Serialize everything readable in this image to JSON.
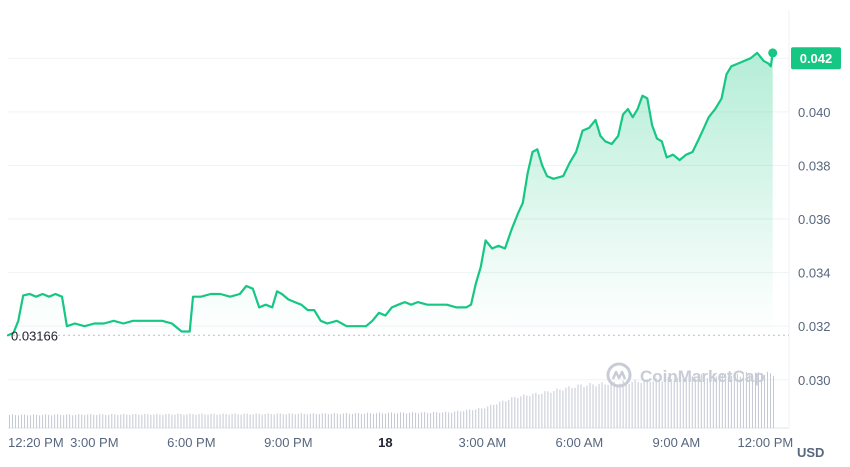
{
  "chart_data": {
    "type": "line",
    "currency": "USD",
    "current_price_label": "0.042",
    "open_price_label": "0.03166",
    "open_price": 0.03166,
    "ylim": [
      0.0282,
      0.0438
    ],
    "y_ticks": [
      {
        "label": "0.042",
        "value": 0.042
      },
      {
        "label": "0.040",
        "value": 0.04
      },
      {
        "label": "0.038",
        "value": 0.038
      },
      {
        "label": "0.036",
        "value": 0.036
      },
      {
        "label": "0.034",
        "value": 0.034
      },
      {
        "label": "0.032",
        "value": 0.032
      },
      {
        "label": "0.030",
        "value": 0.03
      }
    ],
    "x_range_hours": [
      12.33,
      36.05
    ],
    "x_ticks": [
      {
        "label": "12:20 PM",
        "hour": 12.33,
        "bold": false
      },
      {
        "label": "3:00 PM",
        "hour": 15,
        "bold": false
      },
      {
        "label": "6:00 PM",
        "hour": 18,
        "bold": false
      },
      {
        "label": "9:00 PM",
        "hour": 21,
        "bold": false
      },
      {
        "label": "18",
        "hour": 24,
        "bold": true
      },
      {
        "label": "3:00 AM",
        "hour": 27,
        "bold": false
      },
      {
        "label": "6:00 AM",
        "hour": 30,
        "bold": false
      },
      {
        "label": "9:00 AM",
        "hour": 33,
        "bold": false
      },
      {
        "label": "12:00 PM",
        "hour": 36,
        "bold": false
      }
    ],
    "series": [
      {
        "color": "#16c784",
        "points": [
          [
            12.33,
            0.03166
          ],
          [
            12.5,
            0.03175
          ],
          [
            12.65,
            0.0322
          ],
          [
            12.8,
            0.03315
          ],
          [
            13.0,
            0.0332
          ],
          [
            13.2,
            0.0331
          ],
          [
            13.4,
            0.0332
          ],
          [
            13.6,
            0.0331
          ],
          [
            13.8,
            0.0332
          ],
          [
            14.0,
            0.0331
          ],
          [
            14.15,
            0.032
          ],
          [
            14.4,
            0.0321
          ],
          [
            14.7,
            0.032
          ],
          [
            15.0,
            0.0321
          ],
          [
            15.3,
            0.0321
          ],
          [
            15.6,
            0.0322
          ],
          [
            15.9,
            0.0321
          ],
          [
            16.2,
            0.0322
          ],
          [
            16.5,
            0.0322
          ],
          [
            16.8,
            0.0322
          ],
          [
            17.1,
            0.0322
          ],
          [
            17.4,
            0.0321
          ],
          [
            17.7,
            0.0318
          ],
          [
            17.95,
            0.0318
          ],
          [
            18.05,
            0.0331
          ],
          [
            18.3,
            0.0331
          ],
          [
            18.6,
            0.0332
          ],
          [
            18.9,
            0.0332
          ],
          [
            19.2,
            0.0331
          ],
          [
            19.5,
            0.0332
          ],
          [
            19.7,
            0.0335
          ],
          [
            19.9,
            0.0334
          ],
          [
            20.1,
            0.0327
          ],
          [
            20.3,
            0.0328
          ],
          [
            20.5,
            0.0327
          ],
          [
            20.65,
            0.0333
          ],
          [
            20.8,
            0.0332
          ],
          [
            21.0,
            0.033
          ],
          [
            21.2,
            0.0329
          ],
          [
            21.4,
            0.0328
          ],
          [
            21.6,
            0.0326
          ],
          [
            21.8,
            0.0326
          ],
          [
            22.0,
            0.0322
          ],
          [
            22.2,
            0.0321
          ],
          [
            22.5,
            0.0322
          ],
          [
            22.8,
            0.032
          ],
          [
            23.1,
            0.032
          ],
          [
            23.4,
            0.032
          ],
          [
            23.6,
            0.0322
          ],
          [
            23.8,
            0.0325
          ],
          [
            24.0,
            0.0324
          ],
          [
            24.2,
            0.0327
          ],
          [
            24.4,
            0.0328
          ],
          [
            24.6,
            0.0329
          ],
          [
            24.8,
            0.0328
          ],
          [
            25.0,
            0.0329
          ],
          [
            25.3,
            0.0328
          ],
          [
            25.6,
            0.0328
          ],
          [
            25.9,
            0.0328
          ],
          [
            26.2,
            0.0327
          ],
          [
            26.5,
            0.0327
          ],
          [
            26.65,
            0.0328
          ],
          [
            26.8,
            0.0336
          ],
          [
            26.95,
            0.0342
          ],
          [
            27.1,
            0.0352
          ],
          [
            27.3,
            0.0349
          ],
          [
            27.5,
            0.035
          ],
          [
            27.7,
            0.0349
          ],
          [
            27.9,
            0.0356
          ],
          [
            28.1,
            0.0362
          ],
          [
            28.25,
            0.0366
          ],
          [
            28.4,
            0.0377
          ],
          [
            28.55,
            0.0385
          ],
          [
            28.7,
            0.0386
          ],
          [
            28.85,
            0.038
          ],
          [
            29.0,
            0.0376
          ],
          [
            29.2,
            0.0375
          ],
          [
            29.5,
            0.0376
          ],
          [
            29.7,
            0.0381
          ],
          [
            29.9,
            0.0385
          ],
          [
            30.1,
            0.0393
          ],
          [
            30.3,
            0.0394
          ],
          [
            30.5,
            0.0397
          ],
          [
            30.65,
            0.0391
          ],
          [
            30.8,
            0.0389
          ],
          [
            31.0,
            0.0388
          ],
          [
            31.2,
            0.0391
          ],
          [
            31.35,
            0.0399
          ],
          [
            31.5,
            0.0401
          ],
          [
            31.65,
            0.0398
          ],
          [
            31.8,
            0.0401
          ],
          [
            31.95,
            0.0406
          ],
          [
            32.1,
            0.0405
          ],
          [
            32.25,
            0.0395
          ],
          [
            32.4,
            0.039
          ],
          [
            32.55,
            0.0389
          ],
          [
            32.7,
            0.0383
          ],
          [
            32.9,
            0.0384
          ],
          [
            33.1,
            0.0382
          ],
          [
            33.3,
            0.0384
          ],
          [
            33.5,
            0.0385
          ],
          [
            33.7,
            0.039
          ],
          [
            33.85,
            0.0394
          ],
          [
            34.0,
            0.0398
          ],
          [
            34.2,
            0.0401
          ],
          [
            34.4,
            0.0405
          ],
          [
            34.55,
            0.0414
          ],
          [
            34.7,
            0.0417
          ],
          [
            34.9,
            0.0418
          ],
          [
            35.1,
            0.0419
          ],
          [
            35.3,
            0.042
          ],
          [
            35.5,
            0.0422
          ],
          [
            35.7,
            0.0419
          ],
          [
            35.85,
            0.0418
          ],
          [
            35.92,
            0.0417
          ],
          [
            35.98,
            0.0422
          ]
        ]
      }
    ],
    "volume": {
      "color": "#c3c8d3",
      "levels": [
        [
          12.33,
          0.2
        ],
        [
          22.5,
          0.22
        ],
        [
          26.0,
          0.24
        ],
        [
          27.0,
          0.3
        ],
        [
          28.0,
          0.47
        ],
        [
          29.0,
          0.55
        ],
        [
          30.0,
          0.65
        ],
        [
          32.0,
          0.72
        ],
        [
          34.0,
          0.8
        ],
        [
          35.5,
          0.83
        ],
        [
          36.05,
          0.83
        ]
      ]
    }
  },
  "watermark": {
    "text": "CoinMarketCap",
    "icon": "coinmarketcap-logo"
  }
}
